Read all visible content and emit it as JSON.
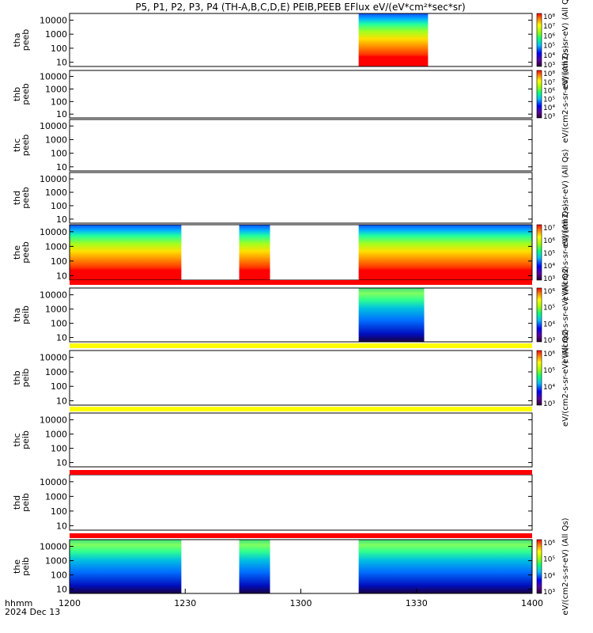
{
  "title": "P5, P1, P2, P3, P4 (TH-A,B,C,D,E) PEIB,PEEB EFlux eV/(eV*cm²*sec*sr)",
  "footer": {
    "time_label": "hhmm",
    "date_label": "2024 Dec 13"
  },
  "chart_data": {
    "type": "heatmap",
    "x_ticks": [
      "1200",
      "1230",
      "1300",
      "1330",
      "1400"
    ],
    "x_range_minutes": [
      0,
      120
    ],
    "y_scale": "log",
    "y_ticks": [
      "10",
      "100",
      "1000",
      "10000"
    ],
    "y_range": [
      5,
      30000
    ],
    "panels": [
      {
        "probe": "tha",
        "species": "peeb",
        "coverage": [
          [
            75,
            93
          ]
        ],
        "kind": "e",
        "cbar": {
          "ticks": [
            "10³",
            "10⁴",
            "10⁵",
            "10⁶",
            "10⁷",
            "10⁸"
          ],
          "label": "eV/(cm2-s-sr-eV) (All Qs)"
        }
      },
      {
        "probe": "thb",
        "species": "peeb",
        "coverage": [],
        "kind": "none",
        "cbar": {
          "ticks": [
            "10³",
            "10⁴",
            "10⁵",
            "10⁶",
            "10⁷",
            "10⁸"
          ],
          "label": "eV/(cm2-s-sr-eV) (All Qs)"
        }
      },
      {
        "probe": "thc",
        "species": "peeb",
        "coverage": [],
        "kind": "none",
        "cbar": null
      },
      {
        "probe": "thd",
        "species": "peeb",
        "coverage": [],
        "kind": "none",
        "cbar": {
          "ticks": [],
          "label": "eV/(cm2-s-sr-eV) (All Qs)"
        }
      },
      {
        "probe": "the",
        "species": "peeb",
        "coverage": [
          [
            0,
            29
          ],
          [
            44,
            52
          ],
          [
            75,
            120
          ]
        ],
        "kind": "e",
        "cbar": {
          "ticks": [
            "10³",
            "10⁴",
            "10⁵",
            "10⁶",
            "10⁷"
          ],
          "label": "eV/(cm2-s-sr-eV) (All Qs)"
        }
      },
      {
        "probe": "tha",
        "species": "peib",
        "coverage": [
          [
            75,
            92
          ]
        ],
        "kind": "i",
        "cbar": {
          "ticks": [
            "10³",
            "10⁴",
            "10⁵",
            "10⁶"
          ],
          "label": "eV/(cm2-s-sr-eV) (All Qs)"
        }
      },
      {
        "probe": "thb",
        "species": "peib",
        "coverage": [],
        "kind": "none",
        "cbar": {
          "ticks": [
            "10³",
            "10⁴",
            "10⁵",
            "10⁶"
          ],
          "label": "eV/(cm2-s-sr-eV) (All Qs)"
        }
      },
      {
        "probe": "thc",
        "species": "peib",
        "coverage": [],
        "kind": "none",
        "cbar": null
      },
      {
        "probe": "thd",
        "species": "peib",
        "coverage": [],
        "kind": "none",
        "cbar": null
      },
      {
        "probe": "the",
        "species": "peib",
        "coverage": [
          [
            0,
            29
          ],
          [
            44,
            52
          ],
          [
            75,
            120
          ]
        ],
        "kind": "i",
        "cbar": {
          "ticks": [
            "10³",
            "10⁴",
            "10⁵",
            "10⁶"
          ],
          "label": "eV/(cm2-s-sr-eV) (All Qs)"
        }
      }
    ],
    "status_bars": [
      {
        "color": "#ff0000"
      },
      {
        "color": "#ffff00"
      },
      {
        "color": "#ffff00"
      },
      {
        "color": "#ff0000"
      },
      {
        "color": "#ff0000"
      }
    ]
  }
}
